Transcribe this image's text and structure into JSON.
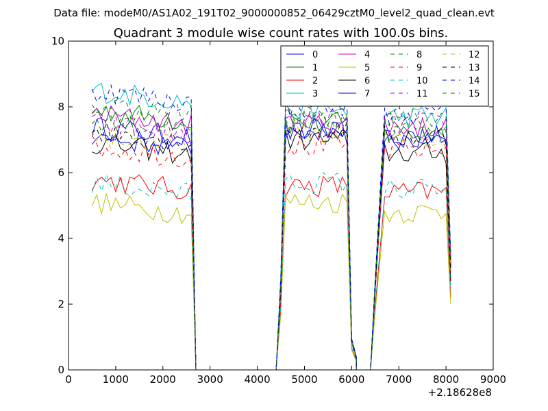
{
  "chart_data": {
    "type": "line",
    "suptitle": "Data file: modeM0/AS1A02_191T02_9000000852_06429cztM0_level2_quad_clean.evt",
    "title": "Quadrant 3 module wise count rates with 100.0s bins.",
    "xlabel": "",
    "ylabel": "",
    "xlim": [
      0,
      9000
    ],
    "ylim": [
      0,
      10
    ],
    "x_offset_label": "+2.18628e8",
    "xticks": [
      0,
      1000,
      2000,
      3000,
      4000,
      5000,
      6000,
      7000,
      8000,
      9000
    ],
    "yticks": [
      0,
      2,
      4,
      6,
      8,
      10
    ],
    "legend_position": "top-right",
    "legend_columns": 4,
    "segments": [
      {
        "x_start": 500,
        "x_end": 2600
      },
      {
        "x_start": 4600,
        "x_end": 5900
      },
      {
        "x_start": 6700,
        "x_end": 8000
      }
    ],
    "gaps": [
      {
        "fall_x": 2700,
        "zero_from": 2700,
        "zero_to": 4400,
        "rise_x": 4500
      },
      {
        "fall_x": 6000,
        "tail_x": 6100,
        "tail_frac": 0.05,
        "zero_from": 6100,
        "zero_to": 6400,
        "rise_x": 6500
      }
    ],
    "final_x": 8100,
    "series": [
      {
        "name": "0",
        "color": "#0000ff",
        "dash": "solid",
        "levels": [
          7.2,
          7.2,
          7.0
        ],
        "final": 3.0
      },
      {
        "name": "1",
        "color": "#008000",
        "dash": "solid",
        "levels": [
          7.7,
          7.5,
          7.2
        ],
        "final": 3.2
      },
      {
        "name": "2",
        "color": "#ff0000",
        "dash": "solid",
        "levels": [
          5.6,
          5.6,
          5.4
        ],
        "final": 2.2
      },
      {
        "name": "3",
        "color": "#00bfbf",
        "dash": "solid",
        "levels": [
          8.3,
          7.9,
          7.7
        ],
        "final": 3.4
      },
      {
        "name": "4",
        "color": "#bf00bf",
        "dash": "solid",
        "levels": [
          7.6,
          7.5,
          7.4
        ],
        "final": 3.3
      },
      {
        "name": "5",
        "color": "#bfbf00",
        "dash": "solid",
        "levels": [
          4.9,
          5.1,
          4.8
        ],
        "final": 2.0
      },
      {
        "name": "6",
        "color": "#000000",
        "dash": "solid",
        "levels": [
          6.7,
          7.0,
          6.6
        ],
        "final": 2.7
      },
      {
        "name": "7",
        "color": "#0000ff",
        "dash": "solid",
        "levels": [
          6.9,
          7.3,
          7.1
        ],
        "final": 3.1
      },
      {
        "name": "8",
        "color": "#008000",
        "dash": "dashed",
        "levels": [
          7.4,
          7.5,
          7.5
        ],
        "final": 3.2
      },
      {
        "name": "9",
        "color": "#ff0000",
        "dash": "dashed",
        "levels": [
          6.6,
          6.8,
          6.7
        ],
        "final": 2.9
      },
      {
        "name": "10",
        "color": "#00bfbf",
        "dash": "dashed",
        "levels": [
          5.5,
          5.7,
          5.5
        ],
        "final": 2.4
      },
      {
        "name": "11",
        "color": "#bf00bf",
        "dash": "dashed",
        "levels": [
          7.3,
          7.6,
          7.5
        ],
        "final": 3.3
      },
      {
        "name": "12",
        "color": "#bfbf00",
        "dash": "dashed",
        "levels": [
          6.9,
          7.2,
          7.0
        ],
        "final": 3.0
      },
      {
        "name": "13",
        "color": "#000000",
        "dash": "dashed",
        "levels": [
          7.1,
          7.3,
          7.1
        ],
        "final": 3.1
      },
      {
        "name": "14",
        "color": "#0000ff",
        "dash": "dashed",
        "levels": [
          8.3,
          8.0,
          7.8
        ],
        "final": 3.5
      },
      {
        "name": "15",
        "color": "#008000",
        "dash": "dashed",
        "levels": [
          7.9,
          7.8,
          7.6
        ],
        "final": 3.4
      }
    ]
  }
}
